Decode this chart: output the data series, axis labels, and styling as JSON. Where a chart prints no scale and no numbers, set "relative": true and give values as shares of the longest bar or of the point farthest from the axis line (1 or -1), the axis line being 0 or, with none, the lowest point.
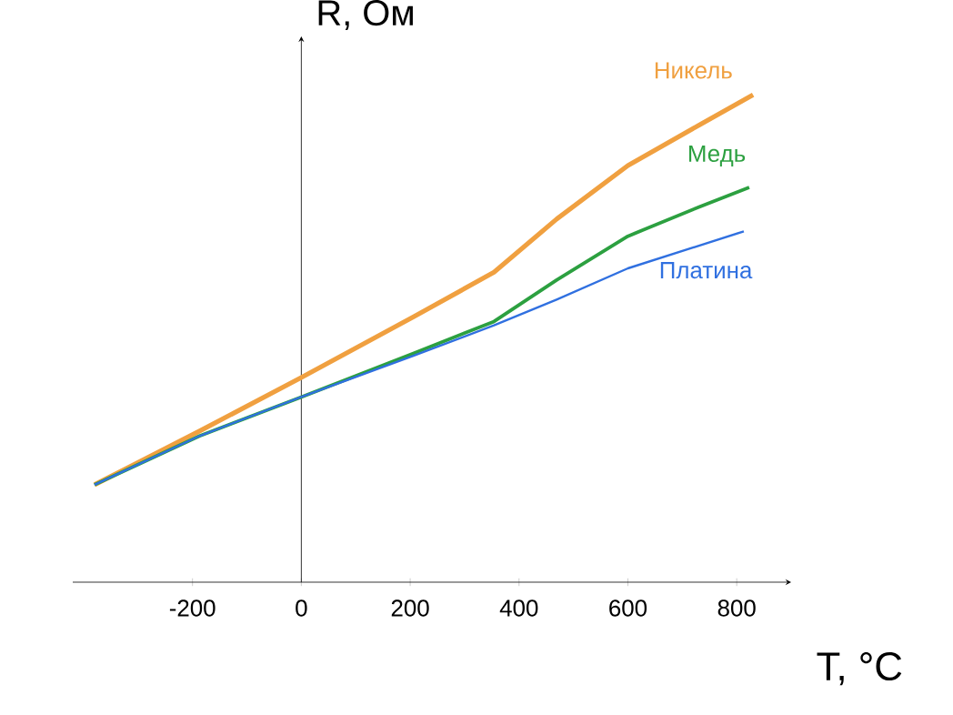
{
  "chart_data": {
    "type": "line",
    "relative": true,
    "xlabel": "T, °C",
    "ylabel": "R, Ом",
    "xlim": [
      -420,
      900
    ],
    "xticks": [
      -200,
      0,
      200,
      400,
      600,
      800
    ],
    "series": [
      {
        "name": "Никель",
        "color": "#f0a040",
        "x": [
          -380,
          -187,
          0,
          207,
          354,
          469,
          600,
          731,
          830
        ],
        "values": [
          0.2,
          0.31,
          0.42,
          0.545,
          0.636,
          0.745,
          0.855,
          0.938,
          1.0
        ]
      },
      {
        "name": "Медь",
        "color": "#2ca040",
        "x": [
          -380,
          -187,
          0,
          207,
          354,
          469,
          600,
          731,
          823
        ],
        "values": [
          0.2,
          0.3,
          0.38,
          0.47,
          0.535,
          0.62,
          0.71,
          0.77,
          0.81
        ]
      },
      {
        "name": "Платина",
        "color": "#3070e0",
        "x": [
          -380,
          -187,
          0,
          207,
          354,
          469,
          600,
          813
        ],
        "values": [
          0.2,
          0.3,
          0.38,
          0.465,
          0.527,
          0.58,
          0.644,
          0.72
        ]
      }
    ]
  }
}
